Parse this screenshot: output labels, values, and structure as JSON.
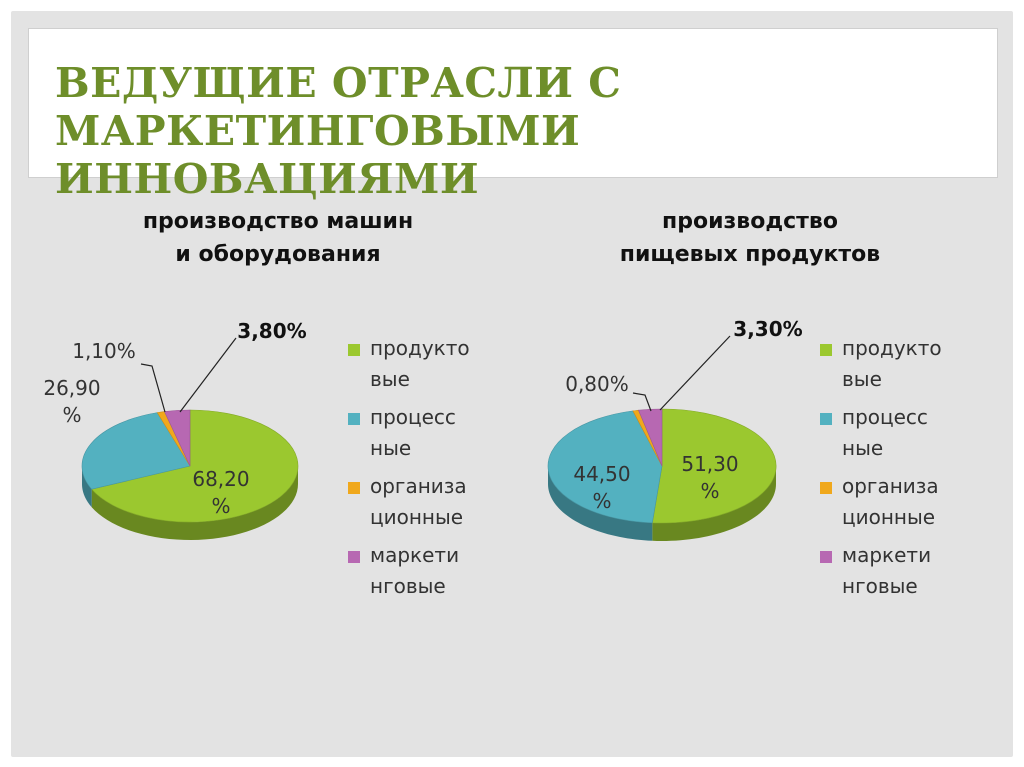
{
  "slide": {
    "title": "Ведущие отрасли с маркетинговыми инновациями"
  },
  "colors": {
    "green": "#9bc82f",
    "teal": "#53b1c0",
    "orange": "#f0a81c",
    "purple": "#b768b2",
    "title": "#6e8e2a"
  },
  "chart_data": [
    {
      "type": "pie",
      "title": [
        "производство машин",
        "и оборудования"
      ],
      "categories": [
        "продуктовые",
        "процессные",
        "организационные",
        "маркетинговые"
      ],
      "values": [
        68.2,
        26.9,
        1.1,
        3.8
      ],
      "data_labels": [
        [
          "68,20",
          "%"
        ],
        [
          "26,90",
          "%"
        ],
        [
          "1,10%"
        ],
        [
          "3,80%"
        ]
      ],
      "legend": {
        "position": "right",
        "entries": [
          [
            "продукто",
            "вые"
          ],
          [
            "процесс",
            "ные"
          ],
          [
            "организа",
            "ционные"
          ],
          [
            "маркети",
            "нговые"
          ]
        ]
      }
    },
    {
      "type": "pie",
      "title": [
        "производство",
        "пищевых продуктов"
      ],
      "categories": [
        "продуктовые",
        "процессные",
        "организационные",
        "маркетинговые"
      ],
      "values": [
        51.3,
        44.5,
        0.8,
        3.3
      ],
      "data_labels": [
        [
          "51,30",
          "%"
        ],
        [
          "44,50",
          "%"
        ],
        [
          "0,80%"
        ],
        [
          "3,30%"
        ]
      ],
      "legend": {
        "position": "right",
        "entries": [
          [
            "продукто",
            "вые"
          ],
          [
            "процесс",
            "ные"
          ],
          [
            "организа",
            "ционные"
          ],
          [
            "маркети",
            "нговые"
          ]
        ]
      }
    }
  ]
}
